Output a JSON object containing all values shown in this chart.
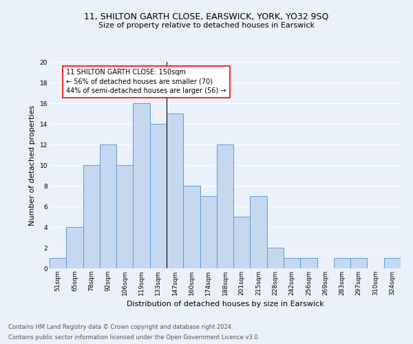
{
  "title": "11, SHILTON GARTH CLOSE, EARSWICK, YORK, YO32 9SQ",
  "subtitle": "Size of property relative to detached houses in Earswick",
  "xlabel": "Distribution of detached houses by size in Earswick",
  "ylabel": "Number of detached properties",
  "categories": [
    "51sqm",
    "65sqm",
    "78sqm",
    "92sqm",
    "106sqm",
    "119sqm",
    "133sqm",
    "147sqm",
    "160sqm",
    "174sqm",
    "188sqm",
    "201sqm",
    "215sqm",
    "228sqm",
    "242sqm",
    "256sqm",
    "269sqm",
    "283sqm",
    "297sqm",
    "310sqm",
    "324sqm"
  ],
  "values": [
    1,
    4,
    10,
    12,
    10,
    16,
    14,
    15,
    8,
    7,
    12,
    5,
    7,
    2,
    1,
    1,
    0,
    1,
    1,
    0,
    1
  ],
  "bar_color": "#c5d8f0",
  "bar_edge_color": "#5b9bd5",
  "vline_x_index": 7,
  "annotation_line1": "11 SHILTON GARTH CLOSE: 150sqm",
  "annotation_line2": "← 56% of detached houses are smaller (70)",
  "annotation_line3": "44% of semi-detached houses are larger (56) →",
  "annotation_box_color": "white",
  "annotation_box_edge_color": "red",
  "ylim": [
    0,
    20
  ],
  "yticks": [
    0,
    2,
    4,
    6,
    8,
    10,
    12,
    14,
    16,
    18,
    20
  ],
  "background_color": "#eaf1fb",
  "footer_line1": "Contains HM Land Registry data © Crown copyright and database right 2024.",
  "footer_line2": "Contains public sector information licensed under the Open Government Licence v3.0.",
  "title_fontsize": 9,
  "subtitle_fontsize": 8,
  "xlabel_fontsize": 8,
  "ylabel_fontsize": 8,
  "tick_fontsize": 6.5,
  "annotation_fontsize": 7,
  "footer_fontsize": 6
}
